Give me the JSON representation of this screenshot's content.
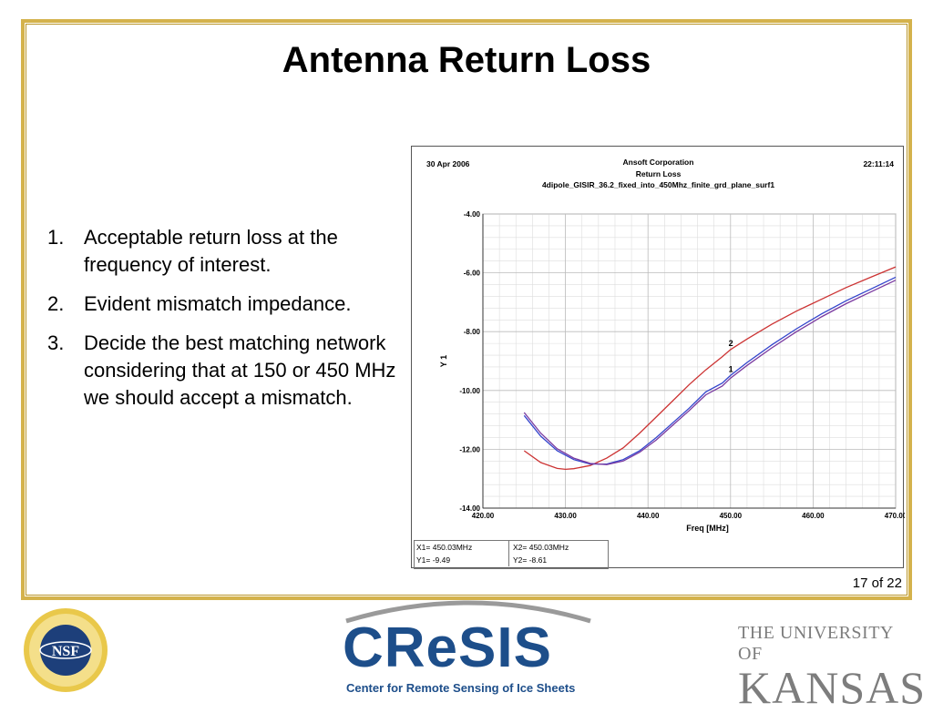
{
  "slide": {
    "title": "Antenna Return Loss",
    "bullets": [
      {
        "num": "1.",
        "text": "Acceptable return loss at the frequency of interest."
      },
      {
        "num": "2.",
        "text": "Evident mismatch impedance."
      },
      {
        "num": "3.",
        "text": "Decide the best matching network considering that at 150 or 450 MHz we should accept a mismatch."
      }
    ],
    "page": "17 of 22"
  },
  "plot_header": {
    "date": "30 Apr 2006",
    "company": "Ansoft Corporation",
    "plot_title": "Return Loss",
    "design": "4dipole_GISIR_36.2_fixed_into_450Mhz_finite_grd_plane_surf1",
    "time": "22:11:14"
  },
  "markers": {
    "x1": "X1= 450.03MHz",
    "y1": "Y1= -9.49",
    "x2": "X2= 450.03MHz",
    "y2": "Y2= -8.61"
  },
  "footer": {
    "cresis_word": "CReSIS",
    "cresis_sub": "Center for Remote Sensing of Ice Sheets",
    "nsf": "NSF",
    "ku_line1": "THE UNIVERSITY OF",
    "ku_line2": "KANSAS"
  },
  "colors": {
    "border": "#d4b24c",
    "series_red": "#cc3333",
    "series_blue": "#3344cc",
    "series_purple": "#7a3aa0",
    "cresis_blue": "#1d4e8a"
  },
  "chart_data": {
    "type": "line",
    "title": "Return Loss",
    "xlabel": "Freq [MHz]",
    "ylabel": "Y 1",
    "xlim": [
      420,
      470
    ],
    "ylim": [
      -14,
      -4
    ],
    "x_ticks": [
      "420.00",
      "430.00",
      "440.00",
      "450.00",
      "460.00",
      "470.00"
    ],
    "y_ticks": [
      "-4.00",
      "-6.00",
      "-8.00",
      "-10.00",
      "-12.00",
      "-14.00"
    ],
    "grid": true,
    "series": [
      {
        "name": "",
        "color": "#cc3333",
        "x": [
          425,
          427,
          429,
          430,
          431,
          433,
          435,
          437,
          439,
          441,
          443,
          445,
          447,
          449,
          450,
          452,
          455,
          458,
          461,
          464,
          467,
          470
        ],
        "y": [
          -12.05,
          -12.45,
          -12.65,
          -12.68,
          -12.66,
          -12.55,
          -12.3,
          -11.95,
          -11.45,
          -10.9,
          -10.35,
          -9.8,
          -9.3,
          -8.85,
          -8.61,
          -8.25,
          -7.75,
          -7.3,
          -6.9,
          -6.5,
          -6.15,
          -5.8
        ]
      },
      {
        "name": "",
        "color": "#3344cc",
        "x": [
          425,
          427,
          429,
          431,
          433,
          435,
          437,
          439,
          441,
          443,
          445,
          447,
          449,
          450,
          452,
          455,
          458,
          461,
          464,
          467,
          470
        ],
        "y": [
          -10.85,
          -11.55,
          -12.05,
          -12.35,
          -12.5,
          -12.5,
          -12.35,
          -12.05,
          -11.6,
          -11.1,
          -10.6,
          -10.05,
          -9.75,
          -9.49,
          -9.05,
          -8.45,
          -7.9,
          -7.4,
          -6.95,
          -6.55,
          -6.15
        ]
      },
      {
        "name": "",
        "color": "#7a3aa0",
        "x": [
          425,
          427,
          429,
          431,
          433,
          435,
          437,
          439,
          441,
          443,
          445,
          447,
          449,
          450,
          452,
          455,
          458,
          461,
          464,
          467,
          470
        ],
        "y": [
          -10.75,
          -11.45,
          -11.98,
          -12.3,
          -12.48,
          -12.52,
          -12.4,
          -12.1,
          -11.68,
          -11.18,
          -10.68,
          -10.15,
          -9.85,
          -9.58,
          -9.15,
          -8.55,
          -8.0,
          -7.5,
          -7.05,
          -6.65,
          -6.25
        ]
      }
    ],
    "annotations": [
      {
        "text": "1",
        "x": 450.03,
        "y": -9.49
      },
      {
        "text": "2",
        "x": 450.03,
        "y": -8.61
      }
    ]
  }
}
